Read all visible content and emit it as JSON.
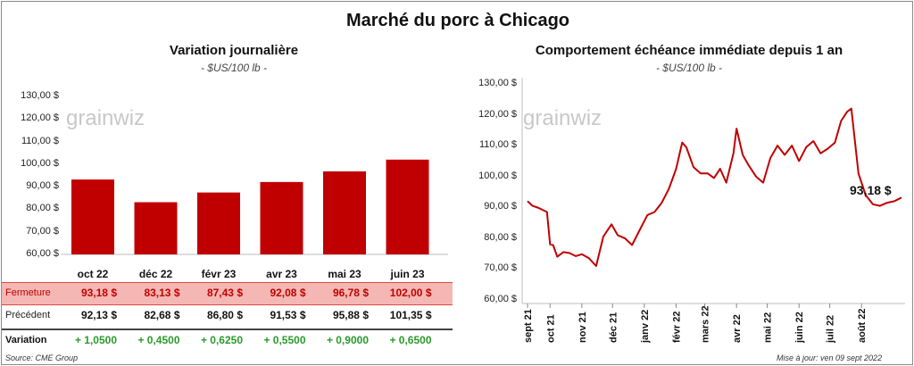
{
  "main_title": "Marché du porc à Chicago",
  "colors": {
    "bar": "#c00000",
    "line": "#c00000",
    "positive": "#2a9a2a",
    "close_row_bg": "#f5b7b3",
    "grid": "#e6e6e6"
  },
  "left": {
    "title": "Variation  journalière",
    "unit": "- $US/100 lb -",
    "watermark": "grainwiz",
    "table": {
      "close_label": "Fermeture",
      "prev_label": "Précédent",
      "var_label": "Variation",
      "close": [
        "93,18  $",
        "83,13  $",
        "87,43  $",
        "92,08  $",
        "96,78  $",
        "102,00  $"
      ],
      "prev": [
        "92,13  $",
        "82,68  $",
        "86,80  $",
        "91,53  $",
        "95,88  $",
        "101,35  $"
      ],
      "variation": [
        "+ 1,0500",
        "+ 0,4500",
        "+ 0,6250",
        "+ 0,5500",
        "+ 0,9000",
        "+ 0,6500"
      ]
    }
  },
  "right": {
    "title": "Comportement  échéance immédiate depuis 1 an",
    "unit": "- $US/100 lb -",
    "watermark": "grainwiz",
    "last_label": "93,18 $"
  },
  "footer": {
    "source": "Source: CME Group",
    "updated": "Mise à jour: ven 09 sept 2022"
  },
  "chart_data": [
    {
      "type": "bar",
      "title": "Variation  journalière",
      "subtitle": "- $US/100 lb -",
      "categories": [
        "oct 22",
        "déc 22",
        "févr 23",
        "avr 23",
        "mai 23",
        "juin 23"
      ],
      "values": [
        93.18,
        83.13,
        87.43,
        92.08,
        96.78,
        102.0
      ],
      "ylim": [
        60,
        130
      ],
      "yticks": [
        "60,00 $",
        "70,00 $",
        "80,00 $",
        "90,00 $",
        "100,00 $",
        "110,00 $",
        "120,00 $",
        "130,00 $"
      ],
      "grid": false
    },
    {
      "type": "line",
      "title": "Comportement  échéance immédiate depuis 1 an",
      "subtitle": "- $US/100 lb -",
      "ylim": [
        60,
        130
      ],
      "yticks": [
        "60,00 $",
        "70,00 $",
        "80,00 $",
        "90,00 $",
        "100,00 $",
        "110,00 $",
        "120,00 $",
        "130,00 $"
      ],
      "xticks": [
        "sept 21",
        "oct 21",
        "nov 21",
        "déc 21",
        "janv 22",
        "févr 22",
        "mars 22",
        "avr 22",
        "mai 22",
        "juin 22",
        "juil 22",
        "août 22"
      ],
      "x": [
        "2021-09-09",
        "2021-09-14",
        "2021-09-20",
        "2021-09-28",
        "2021-10-01",
        "2021-10-04",
        "2021-10-08",
        "2021-10-14",
        "2021-10-20",
        "2021-10-26",
        "2021-11-01",
        "2021-11-08",
        "2021-11-15",
        "2021-11-22",
        "2021-11-30",
        "2021-12-06",
        "2021-12-13",
        "2021-12-20",
        "2021-12-28",
        "2022-01-04",
        "2022-01-11",
        "2022-01-18",
        "2022-01-25",
        "2022-02-01",
        "2022-02-07",
        "2022-02-11",
        "2022-02-18",
        "2022-02-25",
        "2022-03-04",
        "2022-03-10",
        "2022-03-16",
        "2022-03-22",
        "2022-03-29",
        "2022-04-01",
        "2022-04-07",
        "2022-04-13",
        "2022-04-20",
        "2022-04-27",
        "2022-05-04",
        "2022-05-11",
        "2022-05-18",
        "2022-05-25",
        "2022-06-01",
        "2022-06-08",
        "2022-06-15",
        "2022-06-22",
        "2022-06-29",
        "2022-07-06",
        "2022-07-12",
        "2022-07-15",
        "2022-07-18",
        "2022-07-22",
        "2022-07-29",
        "2022-08-05",
        "2022-08-12",
        "2022-08-19",
        "2022-08-26",
        "2022-09-02",
        "2022-09-09"
      ],
      "series": [
        {
          "values": [
            92.0,
            90.5,
            89.8,
            88.5,
            78.0,
            77.8,
            74.0,
            75.5,
            75.2,
            74.2,
            74.8,
            73.5,
            71.0,
            80.5,
            84.5,
            81.0,
            80.0,
            77.8,
            83.0,
            87.5,
            88.5,
            91.5,
            96.0,
            102.5,
            111.0,
            109.5,
            103.0,
            101.0,
            101.0,
            99.5,
            102.5,
            98.0,
            107.5,
            115.5,
            107.0,
            103.5,
            100.0,
            98.0,
            106.0,
            110.0,
            107.0,
            110.0,
            105.0,
            109.5,
            111.5,
            107.5,
            109.0,
            111.0,
            118.0,
            119.5,
            121.0,
            122.0,
            101.0,
            94.0,
            91.0,
            90.5,
            91.5,
            92.0,
            93.18
          ]
        }
      ],
      "annotations": [
        "93,18 $"
      ],
      "grid": false
    }
  ]
}
